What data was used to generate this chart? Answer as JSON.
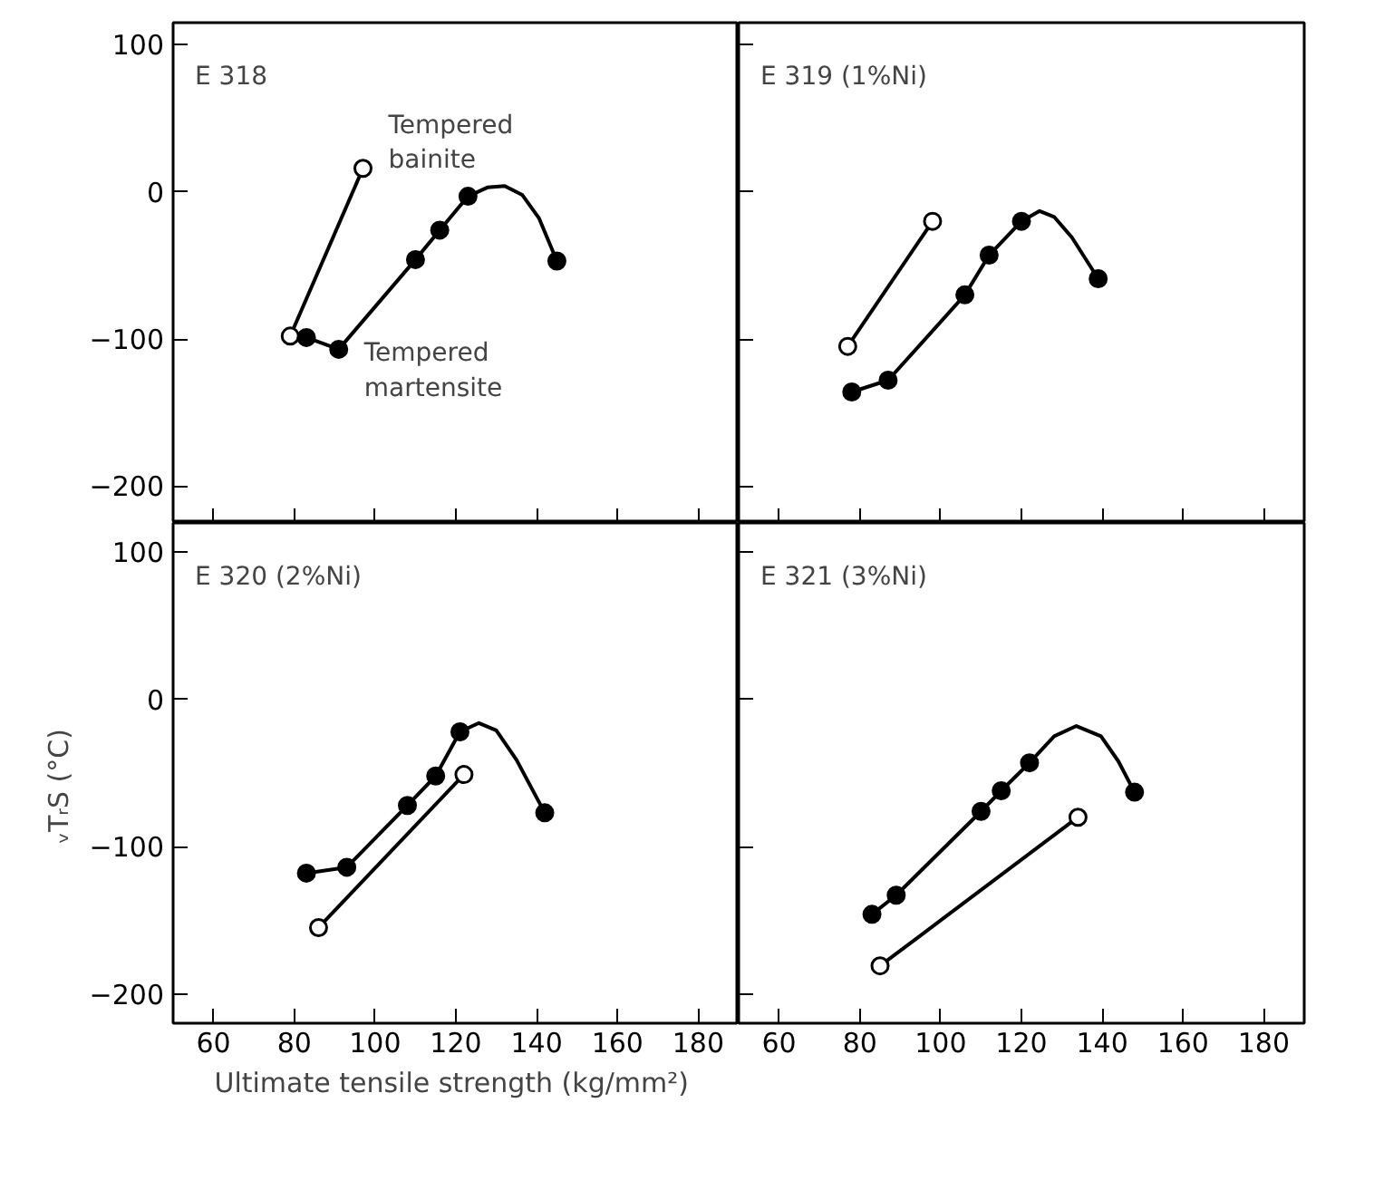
{
  "chart_data": [
    {
      "type": "line",
      "xlim": [
        50,
        190
      ],
      "ylim": [
        -225,
        115
      ],
      "xticks": [
        60,
        80,
        100,
        120,
        140,
        160,
        180
      ],
      "yticks": [
        -200,
        -100,
        0,
        100
      ],
      "tick_labels": "y",
      "grid": false,
      "annotations": [
        "E 318"
      ],
      "series": [
        {
          "name": "Tempered bainite",
          "color": "#000000",
          "marker": "circle_open",
          "x": [
            79,
            97
          ],
          "values": [
            -98,
            16
          ]
        },
        {
          "name": "Tempered martensite",
          "color": "#000000",
          "marker": "circle",
          "x": [
            83,
            91,
            110,
            116,
            123
          ],
          "values": [
            -99,
            -107,
            -46,
            -26,
            -3
          ]
        },
        {
          "color": "#000000",
          "marker": "none",
          "x": [
            123,
            127.8,
            132.1,
            136.4,
            140.6,
            145
          ],
          "values": [
            -3,
            3,
            4,
            -2,
            -18,
            -47
          ]
        },
        {
          "type": "scatter",
          "color": "#000000",
          "marker": "circle",
          "x": [
            145
          ],
          "values": [
            -47
          ]
        }
      ]
    },
    {
      "type": "line",
      "xlim": [
        50,
        190
      ],
      "ylim": [
        -225,
        115
      ],
      "xticks": [
        60,
        80,
        100,
        120,
        140,
        160,
        180
      ],
      "yticks": [
        -200,
        -100,
        0,
        100
      ],
      "tick_labels": false,
      "grid": false,
      "annotations": [
        "E 319   (1%Ni)"
      ],
      "series": [
        {
          "color": "#000000",
          "marker": "circle_open",
          "x": [
            77,
            98
          ],
          "values": [
            -105,
            -20
          ]
        },
        {
          "color": "#000000",
          "marker": "circle",
          "x": [
            78,
            87,
            106,
            112,
            120
          ],
          "values": [
            -136,
            -128,
            -70,
            -43,
            -20
          ]
        },
        {
          "color": "#000000",
          "marker": "none",
          "x": [
            120,
            124.5,
            128.1,
            132.5,
            139
          ],
          "values": [
            -20,
            -13,
            -17,
            -31,
            -59
          ]
        },
        {
          "type": "scatter",
          "color": "#000000",
          "marker": "circle",
          "x": [
            139
          ],
          "values": [
            -59
          ]
        }
      ]
    },
    {
      "type": "line",
      "xlim": [
        50,
        190
      ],
      "ylim": [
        -220,
        120
      ],
      "xticks": [
        60,
        80,
        100,
        120,
        140,
        160,
        180
      ],
      "yticks": [
        -200,
        -100,
        0,
        100
      ],
      "grid": false,
      "xlabel": "Ultimate tensile strength  (kg/mm²)",
      "ylabel": "ᵥTᵣS    (°C)",
      "annotations": [
        "E 320   (2%Ni)"
      ],
      "series": [
        {
          "color": "#000000",
          "marker": "circle_open",
          "x": [
            86,
            122
          ],
          "values": [
            -155,
            -51
          ]
        },
        {
          "color": "#000000",
          "marker": "circle",
          "x": [
            83,
            93,
            108,
            115,
            121
          ],
          "values": [
            -118,
            -114,
            -72,
            -52,
            -22
          ]
        },
        {
          "color": "#000000",
          "marker": "none",
          "x": [
            121,
            125.7,
            130,
            135,
            142
          ],
          "values": [
            -22,
            -16,
            -21,
            -41,
            -77
          ]
        },
        {
          "type": "scatter",
          "color": "#000000",
          "marker": "circle",
          "x": [
            142
          ],
          "values": [
            -77
          ]
        }
      ]
    },
    {
      "type": "line",
      "xlim": [
        50,
        190
      ],
      "ylim": [
        -220,
        120
      ],
      "xticks": [
        60,
        80,
        100,
        120,
        140,
        160,
        180
      ],
      "yticks": [
        -200,
        -100,
        0,
        100
      ],
      "tick_labels": "x",
      "grid": false,
      "annotations": [
        "E 321   (3%Ni)"
      ],
      "series": [
        {
          "color": "#000000",
          "marker": "circle_open",
          "x": [
            85,
            134
          ],
          "values": [
            -181,
            -80
          ]
        },
        {
          "color": "#000000",
          "marker": "circle",
          "x": [
            83,
            89,
            110,
            115,
            122
          ],
          "values": [
            -146,
            -133,
            -76,
            -62,
            -43
          ]
        },
        {
          "color": "#000000",
          "marker": "none",
          "x": [
            122,
            128.1,
            133.6,
            139.7,
            144,
            148
          ],
          "values": [
            -43,
            -25,
            -18,
            -25,
            -42,
            -63
          ]
        },
        {
          "type": "scatter",
          "color": "#000000",
          "marker": "circle",
          "x": [
            148
          ],
          "values": [
            -63
          ]
        }
      ]
    }
  ]
}
